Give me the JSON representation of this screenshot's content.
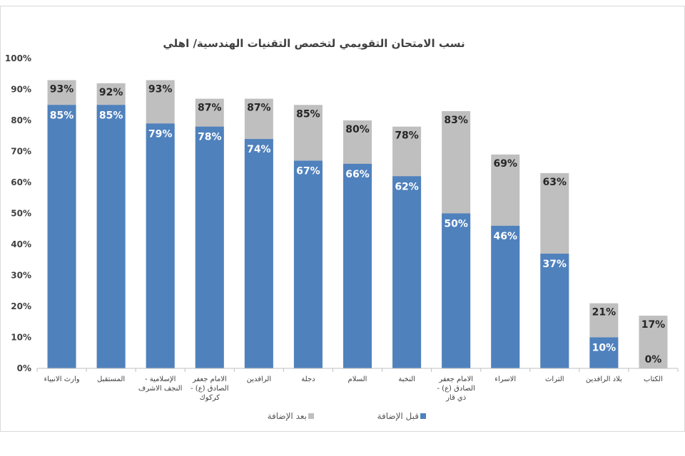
{
  "chart_data": {
    "type": "bar",
    "stacked": "overlay",
    "title": "نسب الامتحان التقويمي لتخصص التقنيات الهندسية/ اهلي",
    "xlabel": "",
    "ylabel": "",
    "ylim": [
      0,
      100
    ],
    "yticks": [
      "0%",
      "10%",
      "20%",
      "30%",
      "40%",
      "50%",
      "60%",
      "70%",
      "80%",
      "90%",
      "100%"
    ],
    "grid": false,
    "legend_position": "bottom",
    "categories": [
      [
        "وارث الانبياء"
      ],
      [
        "المستقبل"
      ],
      [
        "الإسلامية -",
        "النجف الاشرف"
      ],
      [
        "الامام جعفر",
        "الصادق (ع) -",
        "كركوك"
      ],
      [
        "الرافدين"
      ],
      [
        "دجلة"
      ],
      [
        "السلام"
      ],
      [
        "النخبة"
      ],
      [
        "الامام جعفر",
        "الصادق (ع) -",
        "ذي قار"
      ],
      [
        "الاسراء"
      ],
      [
        "التراث"
      ],
      [
        "بلاد الرافدين"
      ],
      [
        "الكتاب"
      ]
    ],
    "series": [
      {
        "name": "قبل الإضافة",
        "color": "#4f81bd",
        "values": [
          85,
          85,
          79,
          78,
          74,
          67,
          66,
          62,
          50,
          46,
          37,
          10,
          0
        ],
        "label_color": "#ffffff"
      },
      {
        "name": "بعد الإضافة",
        "color": "#bfbfbf",
        "values": [
          93,
          92,
          93,
          87,
          87,
          85,
          80,
          78,
          83,
          69,
          63,
          21,
          17
        ],
        "label_color": "#262626"
      }
    ]
  }
}
